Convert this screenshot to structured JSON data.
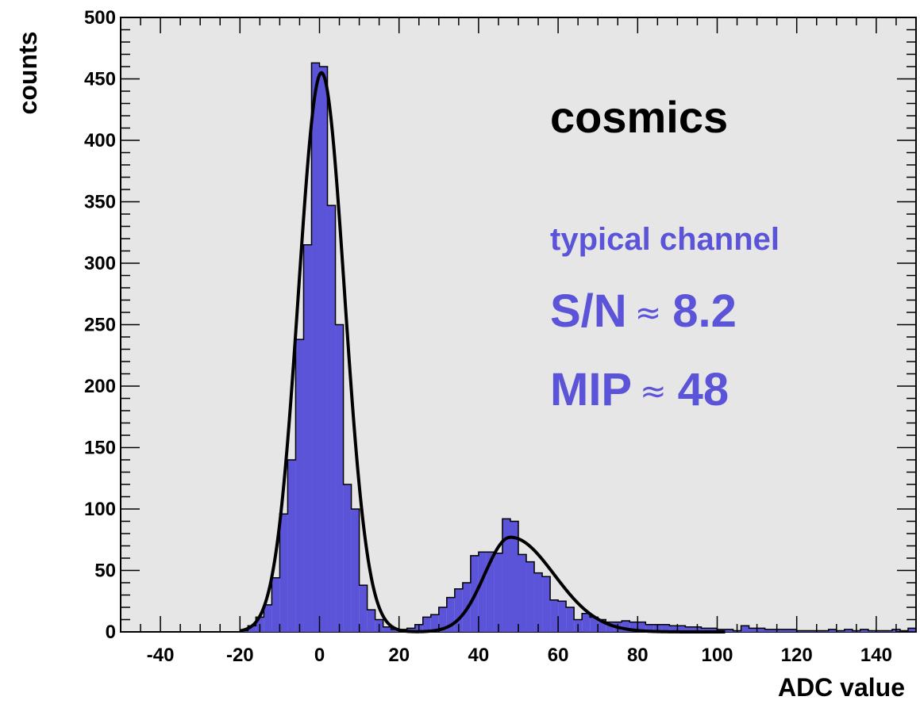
{
  "colors": {
    "bar": "#5b54d9",
    "annotation": "#5b54d9",
    "frame_bg": "#e6e6e6",
    "fit": "#000000"
  },
  "chart_data": {
    "type": "bar",
    "title": "",
    "xlabel": "ADC value",
    "ylabel": "counts",
    "xlim": [
      -50,
      150
    ],
    "ylim": [
      0,
      500
    ],
    "bin_width": 2,
    "x_ticks": [
      -40,
      -20,
      0,
      20,
      40,
      60,
      80,
      100,
      120,
      140
    ],
    "y_ticks": [
      0,
      50,
      100,
      150,
      200,
      250,
      300,
      350,
      400,
      450,
      500
    ],
    "x_tick_labels": [
      "-40",
      "-20",
      "0",
      "20",
      "40",
      "60",
      "80",
      "100",
      "120",
      "140"
    ],
    "y_tick_labels": [
      "0",
      "50",
      "100",
      "150",
      "200",
      "250",
      "300",
      "350",
      "400",
      "450",
      "500"
    ],
    "grid": false,
    "legend": "none",
    "bin_centers": [
      -49,
      -47,
      -45,
      -43,
      -41,
      -39,
      -37,
      -35,
      -33,
      -31,
      -29,
      -27,
      -25,
      -23,
      -21,
      -19,
      -17,
      -15,
      -13,
      -11,
      -9,
      -7,
      -5,
      -3,
      -1,
      1,
      3,
      5,
      7,
      9,
      11,
      13,
      15,
      17,
      19,
      21,
      23,
      25,
      27,
      29,
      31,
      33,
      35,
      37,
      39,
      41,
      43,
      45,
      47,
      49,
      51,
      53,
      55,
      57,
      59,
      61,
      63,
      65,
      67,
      69,
      71,
      73,
      75,
      77,
      79,
      81,
      83,
      85,
      87,
      89,
      91,
      93,
      95,
      97,
      99,
      101,
      103,
      105,
      107,
      109,
      111,
      113,
      115,
      117,
      119,
      121,
      123,
      125,
      127,
      129,
      131,
      133,
      135,
      137,
      139,
      141,
      143,
      145,
      147,
      149
    ],
    "counts": [
      0,
      0,
      0,
      0,
      0,
      0,
      0,
      0,
      0,
      0,
      0,
      0,
      0,
      0,
      0,
      1,
      5,
      12,
      22,
      44,
      96,
      140,
      238,
      315,
      463,
      460,
      347,
      250,
      120,
      100,
      38,
      18,
      10,
      4,
      2,
      2,
      3,
      6,
      12,
      14,
      20,
      28,
      35,
      40,
      62,
      65,
      65,
      64,
      92,
      90,
      63,
      57,
      48,
      45,
      26,
      25,
      20,
      10,
      15,
      12,
      10,
      8,
      8,
      9,
      8,
      8,
      6,
      6,
      6,
      5,
      5,
      4,
      4,
      3,
      3,
      2,
      2,
      1,
      5,
      3,
      3,
      2,
      2,
      2,
      2,
      1,
      1,
      1,
      1,
      2,
      1,
      2,
      1,
      2,
      1,
      1,
      1,
      2,
      1,
      3
    ],
    "series": [
      {
        "name": "",
        "type": "histogram"
      },
      {
        "name": "",
        "type": "fit",
        "pedestal": {
          "mean": 0.5,
          "sigma": 5.8,
          "amplitude": 455
        },
        "mip": {
          "mpv": 48,
          "amplitude": 77,
          "sigma_left": 6.5,
          "sigma_right": 11
        }
      }
    ],
    "annotations": {
      "label": "cosmics",
      "channel": "typical channel",
      "sn_prefix": "S/N",
      "sn_value": "8.2",
      "mip_prefix": "MIP",
      "mip_value": "48",
      "approx_symbol": "≈"
    }
  }
}
